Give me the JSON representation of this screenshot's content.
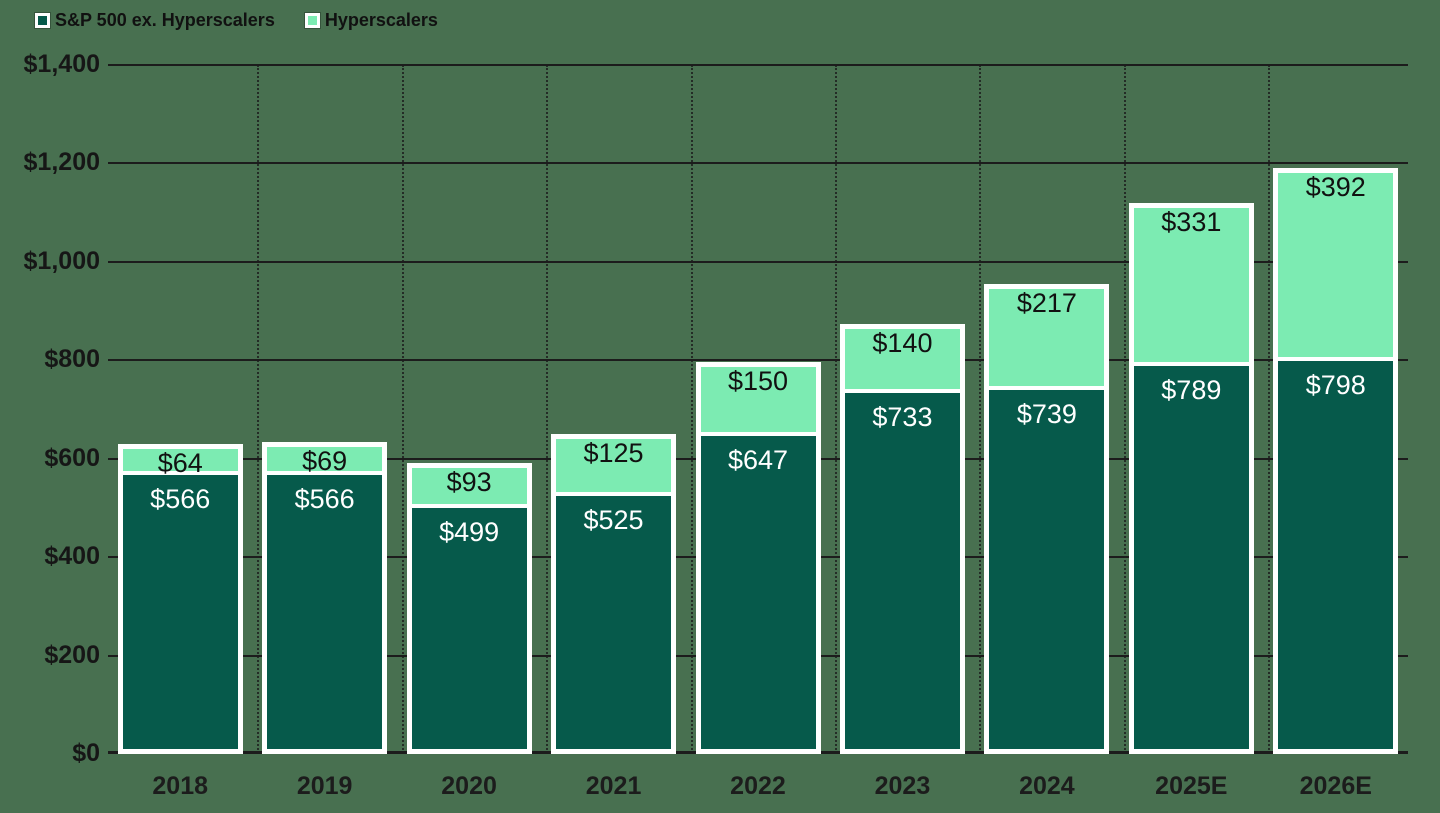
{
  "colors": {
    "background": "#487050",
    "grid": "#1c1c1c",
    "bar_border": "#ffffff",
    "axis_text": "#161616"
  },
  "chart_data": {
    "type": "bar",
    "stacked": true,
    "title": "",
    "xlabel": "",
    "ylabel": "",
    "value_prefix": "$",
    "categories": [
      "2018",
      "2019",
      "2020",
      "2021",
      "2022",
      "2023",
      "2024",
      "2025E",
      "2026E"
    ],
    "series": [
      {
        "name": "S&P 500 ex. Hyperscalers",
        "color": "#065a4b",
        "label_color": "#ffffff",
        "values": [
          566,
          566,
          499,
          525,
          647,
          733,
          739,
          789,
          798
        ]
      },
      {
        "name": "Hyperscalers",
        "color": "#7cebb2",
        "label_color": "#111111",
        "values": [
          64,
          69,
          93,
          125,
          150,
          140,
          217,
          331,
          392
        ]
      }
    ],
    "ylim": [
      0,
      1400
    ],
    "ytick_step": 200,
    "ytick_labels": [
      "$0",
      "$200",
      "$400",
      "$600",
      "$800",
      "$1,000",
      "$1,200",
      "$1,400"
    ],
    "grid": "horizontal-solid-black, vertical-dotted-at-bar-edges",
    "legend_position": "top-left",
    "legend": [
      "S&P 500 ex. Hyperscalers",
      "Hyperscalers"
    ]
  }
}
